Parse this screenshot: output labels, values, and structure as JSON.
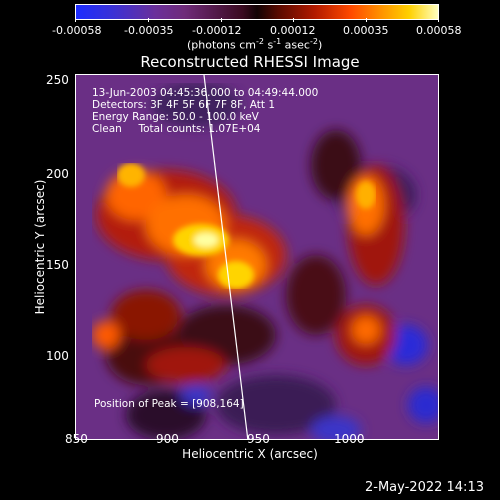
{
  "colorbar": {
    "tick_labels": [
      "-0.00058",
      "-0.00035",
      "-0.00012",
      "0.00012",
      "0.00035",
      "0.00058"
    ],
    "unit_label": "(photons cm",
    "unit_exp1": "-2",
    "unit_mid": " s",
    "unit_exp2": "-1",
    "unit_tail": " asec",
    "unit_exp3": "-2",
    "unit_close": ")"
  },
  "title": "Reconstructed RHESSI Image",
  "info": {
    "time_range": "13-Jun-2003 04:45:36.000 to 04:49:44.000",
    "detectors": "Detectors: 3F 4F 5F 6F 7F 8F, Att 1",
    "energy": "Energy Range: 50.0 - 100.0 keV",
    "method": "Clean     Total counts: 1.07E+04",
    "peak": "Position of Peak = [908,164]"
  },
  "axes": {
    "xlabel": "Heliocentric X (arcsec)",
    "ylabel": "Heliocentric Y (arcsec)",
    "xticks": [
      "850",
      "900",
      "950",
      "1000"
    ],
    "yticks": [
      "250",
      "200",
      "150",
      "100"
    ]
  },
  "footer": {
    "date": "2-May-2022 14:13"
  }
}
